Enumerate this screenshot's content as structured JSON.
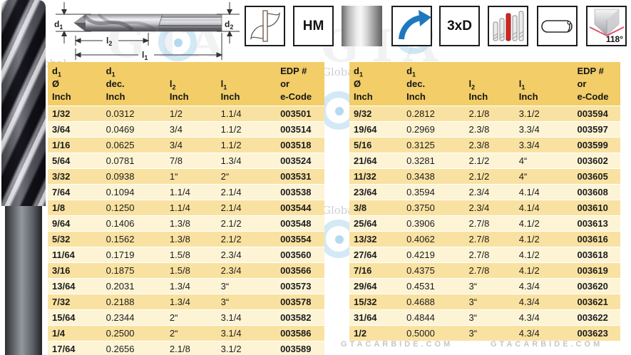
{
  "colors": {
    "header_bg": "#f2cd68",
    "row_gold": "#f9e2a1",
    "row_cream": "#fdf4d6",
    "icon_border": "#1c1c1c",
    "arrow_blue": "#1e78c0",
    "accent_red": "#cf2626",
    "point_angle_red": "#e0526a",
    "watermark_gray": "#c6c6c6"
  },
  "diagram": {
    "labels": {
      "d1_base": "d",
      "d1_sub": "1",
      "d2_base": "d",
      "d2_sub": "2",
      "l2_base": "l",
      "l2_sub": "2",
      "l1_base": "l",
      "l1_sub": "1"
    }
  },
  "icons": {
    "hm_label": "HM",
    "length_ratio_label": "3xD",
    "point_angle_label": "118°"
  },
  "table": {
    "header_cols": [
      {
        "lines": [
          [
            "d",
            "1"
          ],
          [
            "Ø",
            ""
          ],
          [
            "Inch",
            ""
          ]
        ]
      },
      {
        "lines": [
          [
            "d",
            "1"
          ],
          [
            "dec.",
            ""
          ],
          [
            "Inch",
            ""
          ]
        ]
      },
      {
        "lines": [
          [
            "",
            ""
          ],
          [
            "l",
            "2"
          ],
          [
            "Inch",
            ""
          ]
        ]
      },
      {
        "lines": [
          [
            "",
            ""
          ],
          [
            "l",
            "1"
          ],
          [
            "Inch",
            ""
          ]
        ]
      },
      {
        "lines": [
          [
            "EDP #",
            ""
          ],
          [
            "or",
            ""
          ],
          [
            "e-Code",
            ""
          ]
        ]
      }
    ],
    "left_rows": [
      [
        "1/32",
        "0.0312",
        "1/2",
        "1.1/4",
        "003501"
      ],
      [
        "3/64",
        "0.0469",
        "3/4",
        "1.1/2",
        "003514"
      ],
      [
        "1/16",
        "0.0625",
        "3/4",
        "1.1/2",
        "003518"
      ],
      [
        "5/64",
        "0.0781",
        "7/8",
        "1.3/4",
        "003524"
      ],
      [
        "3/32",
        "0.0938",
        "1“",
        "2“",
        "003531"
      ],
      [
        "7/64",
        "0.1094",
        "1.1/4",
        "2.1/4",
        "003538"
      ],
      [
        "1/8",
        "0.1250",
        "1.1/4",
        "2.1/4",
        "003544"
      ],
      [
        "9/64",
        "0.1406",
        "1.3/8",
        "2.1/2",
        "003548"
      ],
      [
        "5/32",
        "0.1562",
        "1.3/8",
        "2.1/2",
        "003554"
      ],
      [
        "11/64",
        "0.1719",
        "1.5/8",
        "2.3/4",
        "003560"
      ],
      [
        "3/16",
        "0.1875",
        "1.5/8",
        "2.3/4",
        "003566"
      ],
      [
        "13/64",
        "0.2031",
        "1.3/4",
        "3“",
        "003573"
      ],
      [
        "7/32",
        "0.2188",
        "1.3/4",
        "3“",
        "003578"
      ],
      [
        "15/64",
        "0.2344",
        "2“",
        "3.1/4",
        "003582"
      ],
      [
        "1/4",
        "0.2500",
        "2“",
        "3.1/4",
        "003586"
      ],
      [
        "17/64",
        "0.2656",
        "2.1/8",
        "3.1/2",
        "003589"
      ]
    ],
    "right_rows": [
      [
        "9/32",
        "0.2812",
        "2.1/8",
        "3.1/2",
        "003594"
      ],
      [
        "19/64",
        "0.2969",
        "2.3/8",
        "3.3/4",
        "003597"
      ],
      [
        "5/16",
        "0.3125",
        "2.3/8",
        "3.3/4",
        "003599"
      ],
      [
        "21/64",
        "0.3281",
        "2.1/2",
        "4“",
        "003602"
      ],
      [
        "11/32",
        "0.3438",
        "2.1/2",
        "4“",
        "003605"
      ],
      [
        "23/64",
        "0.3594",
        "2.3/4",
        "4.1/4",
        "003608"
      ],
      [
        "3/8",
        "0.3750",
        "2.3/4",
        "4.1/4",
        "003610"
      ],
      [
        "25/64",
        "0.3906",
        "2.7/8",
        "4.1/2",
        "003613"
      ],
      [
        "13/32",
        "0.4062",
        "2.7/8",
        "4.1/2",
        "003616"
      ],
      [
        "27/64",
        "0.4219",
        "2.7/8",
        "4.1/2",
        "003618"
      ],
      [
        "7/16",
        "0.4375",
        "2.7/8",
        "4.1/2",
        "003619"
      ],
      [
        "29/64",
        "0.4531",
        "3“",
        "4.3/4",
        "003620"
      ],
      [
        "15/32",
        "0.4688",
        "3“",
        "4.3/4",
        "003621"
      ],
      [
        "31/64",
        "0.4844",
        "3“",
        "4.3/4",
        "003622"
      ],
      [
        "1/2",
        "0.5000",
        "3“",
        "4.3/4",
        "003623"
      ]
    ]
  },
  "watermark": {
    "site": "GTACARBIDE.COM",
    "brand": "GTA",
    "brand_word": "Global"
  }
}
